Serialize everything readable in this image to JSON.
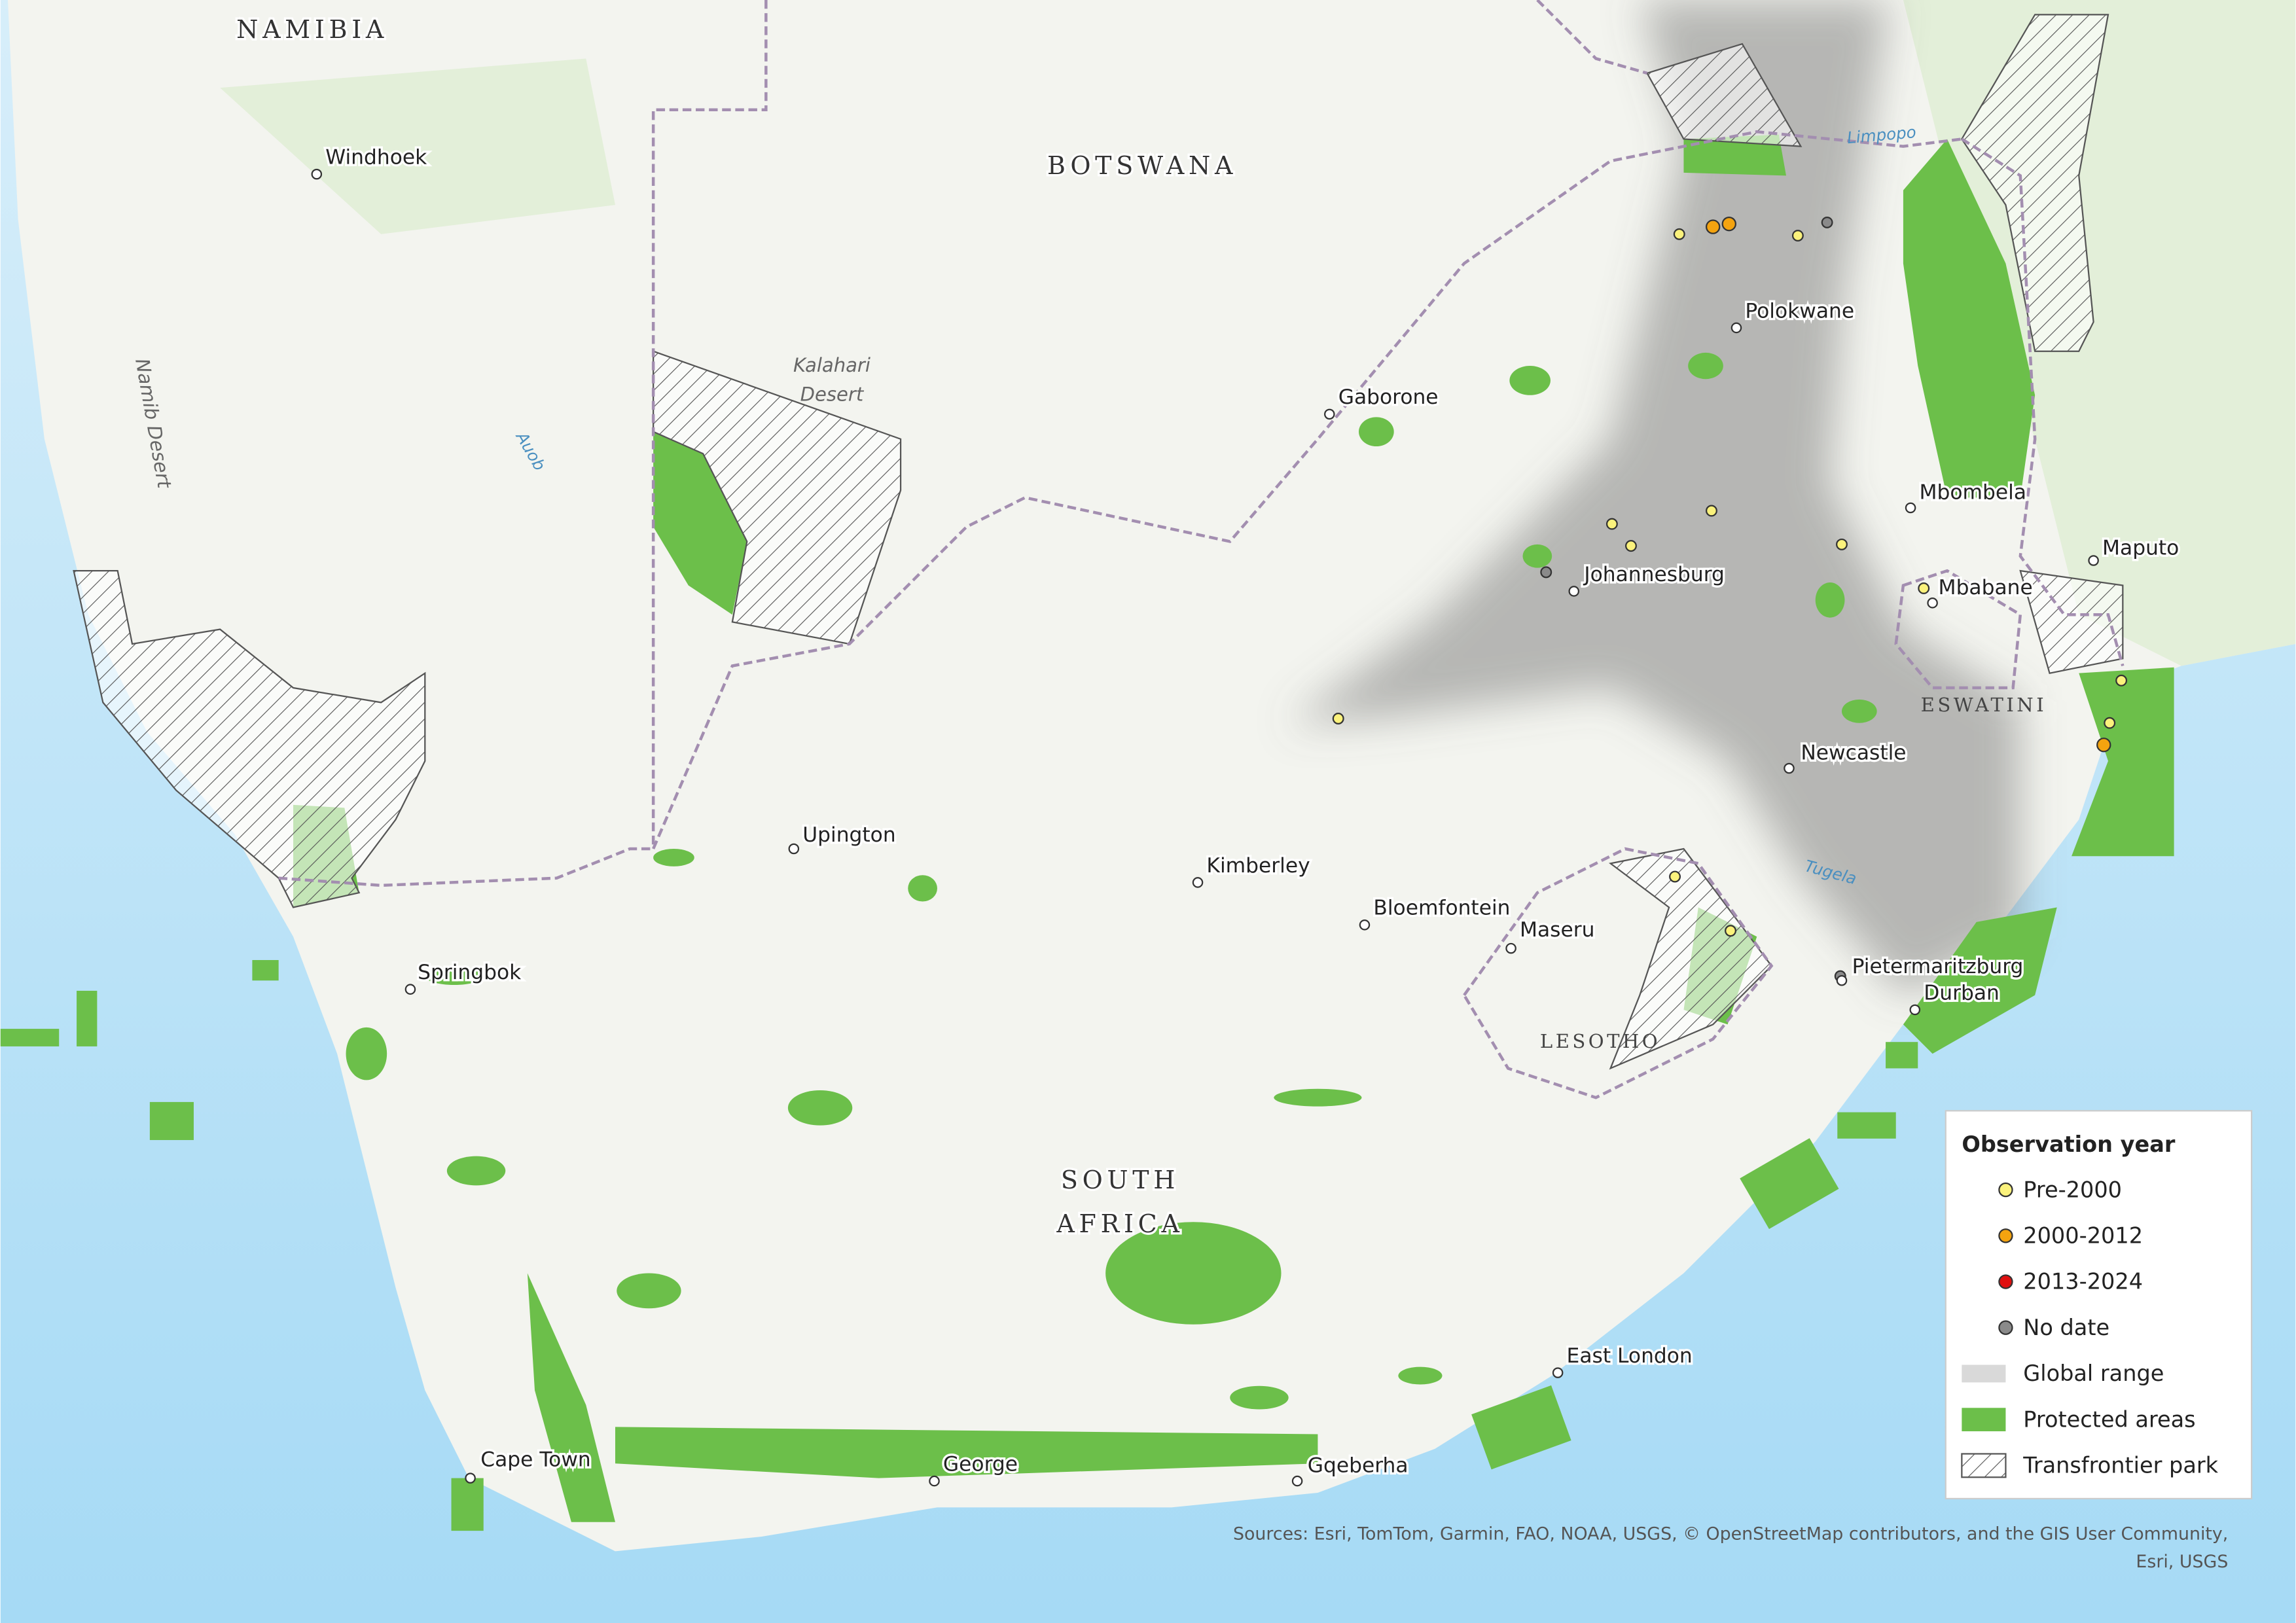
{
  "map": {
    "countries": [
      "NAMIBIA",
      "BOTSWANA",
      "LESOTHO",
      "ESWATINI"
    ],
    "south_africa": [
      "SOUTH",
      "AFRICA"
    ],
    "cities": [
      "Windhoek",
      "Gaborone",
      "Polokwane",
      "Johannesburg",
      "Mbombela",
      "Maputo",
      "Mbabane",
      "Newcastle",
      "Upington",
      "Kimberley",
      "Bloemfontein",
      "Maseru",
      "Pietermaritzburg",
      "Durban",
      "Springbok",
      "East London",
      "Cape Town",
      "George",
      "Gqeberha"
    ],
    "kalahari": [
      "Kalahari",
      "Desert"
    ],
    "namib": "Namib Desert",
    "rivers": [
      "Auob",
      "Limpopo",
      "Tugela"
    ]
  },
  "legend": {
    "title": "Observation year",
    "items": [
      {
        "label": "Pre-2000",
        "symbol": "point",
        "color": "#fbf27c"
      },
      {
        "label": "2000-2012",
        "symbol": "point",
        "color": "#f4a30f"
      },
      {
        "label": "2013-2024",
        "symbol": "point",
        "color": "#e01010"
      },
      {
        "label": "No date",
        "symbol": "point",
        "color": "#8a8a8a"
      },
      {
        "label": "Global range",
        "symbol": "band",
        "color": "#d9d9d9"
      },
      {
        "label": "Protected areas",
        "symbol": "fill",
        "color": "#6cbf4a"
      },
      {
        "label": "Transfrontier park",
        "symbol": "hatch",
        "color": "#555555"
      }
    ]
  },
  "sources": [
    "Sources: Esri, TomTom, Garmin, FAO, NOAA, USGS, © OpenStreetMap contributors, and the GIS User Community,",
    "Esri, USGS"
  ]
}
